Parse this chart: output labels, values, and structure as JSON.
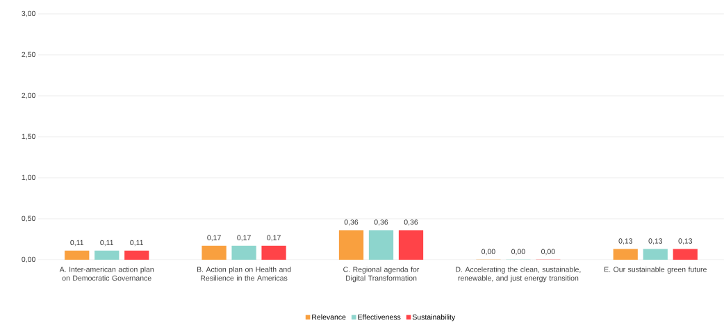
{
  "chart_data": {
    "type": "bar",
    "categories": [
      "A. Inter-american action plan on Democratic Governance",
      "B. Action plan on Health and Resilience in the Americas",
      "C. Regional agenda for Digital Transformation",
      "D. Accelerating the clean, sustainable, renewable, and just energy transition",
      "E. Our sustainable green future"
    ],
    "series": [
      {
        "name": "Relevance",
        "color": "#f9a03f",
        "values": [
          0.11,
          0.17,
          0.36,
          0.0,
          0.13
        ],
        "value_labels": [
          "0,11",
          "0,17",
          "0,36",
          "0,00",
          "0,13"
        ]
      },
      {
        "name": "Effectiveness",
        "color": "#8dd5cd",
        "values": [
          0.11,
          0.17,
          0.36,
          0.0,
          0.13
        ],
        "value_labels": [
          "0,11",
          "0,17",
          "0,36",
          "0,00",
          "0,13"
        ]
      },
      {
        "name": "Sustainability",
        "color": "#ff4348",
        "values": [
          0.11,
          0.17,
          0.36,
          0.0,
          0.13
        ],
        "value_labels": [
          "0,11",
          "0,17",
          "0,36",
          "0,00",
          "0,13"
        ]
      }
    ],
    "ylim": [
      0,
      3
    ],
    "yticks": [
      {
        "value": 0,
        "label": "0,00"
      },
      {
        "value": 0.5,
        "label": "0,50"
      },
      {
        "value": 1,
        "label": "1,00"
      },
      {
        "value": 1.5,
        "label": "1,50"
      },
      {
        "value": 2,
        "label": "2,00"
      },
      {
        "value": 2.5,
        "label": "2,50"
      },
      {
        "value": 3,
        "label": "3,00"
      }
    ],
    "grid": "y",
    "legend": "bottom"
  }
}
